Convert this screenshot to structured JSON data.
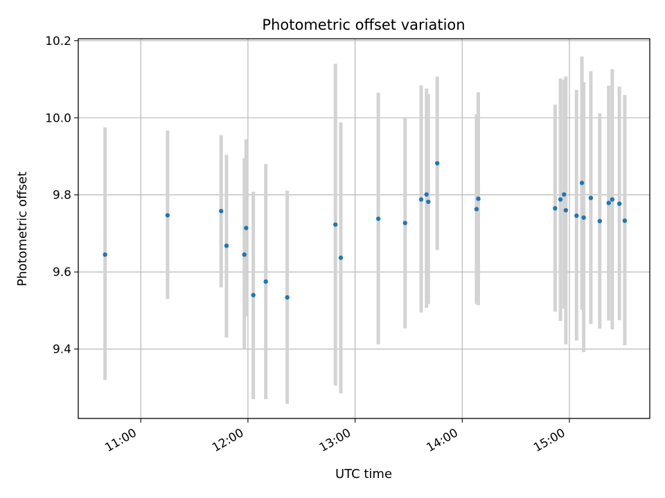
{
  "chart_data": {
    "type": "scatter",
    "title": "Photometric offset variation",
    "xlabel": "UTC time",
    "ylabel": "Photometric offset",
    "x_format": "time HH:MM",
    "xlim": [
      "10:25",
      "15:45"
    ],
    "ylim": [
      9.22,
      10.205
    ],
    "xticks": [
      "11:00",
      "12:00",
      "13:00",
      "14:00",
      "15:00"
    ],
    "yticks": [
      "9.4",
      "9.6",
      "9.8",
      "10.0",
      "10.2"
    ],
    "grid": true,
    "marker_color": "#1f77b4",
    "errorbar_color": "#d3d3d3",
    "points": [
      {
        "x": "10:40",
        "y": 9.645,
        "ylow": 9.32,
        "yhigh": 9.975
      },
      {
        "x": "11:15",
        "y": 9.747,
        "ylow": 9.53,
        "yhigh": 9.967
      },
      {
        "x": "11:45",
        "y": 9.758,
        "ylow": 9.56,
        "yhigh": 9.955
      },
      {
        "x": "11:48",
        "y": 9.668,
        "ylow": 9.43,
        "yhigh": 9.904
      },
      {
        "x": "11:58",
        "y": 9.645,
        "ylow": 9.4,
        "yhigh": 9.895
      },
      {
        "x": "11:59",
        "y": 9.714,
        "ylow": 9.485,
        "yhigh": 9.944
      },
      {
        "x": "12:03",
        "y": 9.54,
        "ylow": 9.27,
        "yhigh": 9.808
      },
      {
        "x": "12:10",
        "y": 9.575,
        "ylow": 9.27,
        "yhigh": 9.88
      },
      {
        "x": "12:22",
        "y": 9.534,
        "ylow": 9.258,
        "yhigh": 9.811
      },
      {
        "x": "12:49",
        "y": 9.723,
        "ylow": 9.305,
        "yhigh": 10.14
      },
      {
        "x": "12:52",
        "y": 9.637,
        "ylow": 9.285,
        "yhigh": 9.988
      },
      {
        "x": "13:13",
        "y": 9.738,
        "ylow": 9.412,
        "yhigh": 10.065
      },
      {
        "x": "13:28",
        "y": 9.727,
        "ylow": 9.454,
        "yhigh": 10.0
      },
      {
        "x": "13:37",
        "y": 9.788,
        "ylow": 9.495,
        "yhigh": 10.084
      },
      {
        "x": "13:40",
        "y": 9.801,
        "ylow": 9.507,
        "yhigh": 10.076
      },
      {
        "x": "13:41",
        "y": 9.782,
        "ylow": 9.517,
        "yhigh": 10.061
      },
      {
        "x": "13:46",
        "y": 9.882,
        "ylow": 9.657,
        "yhigh": 10.107
      },
      {
        "x": "14:08",
        "y": 9.763,
        "ylow": 9.517,
        "yhigh": 10.009
      },
      {
        "x": "14:09",
        "y": 9.79,
        "ylow": 9.514,
        "yhigh": 10.066
      },
      {
        "x": "14:52",
        "y": 9.765,
        "ylow": 9.497,
        "yhigh": 10.034
      },
      {
        "x": "14:55",
        "y": 9.788,
        "ylow": 9.473,
        "yhigh": 10.102
      },
      {
        "x": "14:57",
        "y": 9.801,
        "ylow": 9.505,
        "yhigh": 10.099
      },
      {
        "x": "14:58",
        "y": 9.76,
        "ylow": 9.412,
        "yhigh": 10.107
      },
      {
        "x": "15:04",
        "y": 9.746,
        "ylow": 9.422,
        "yhigh": 10.072
      },
      {
        "x": "15:07",
        "y": 9.831,
        "ylow": 9.502,
        "yhigh": 10.159
      },
      {
        "x": "15:08",
        "y": 9.741,
        "ylow": 9.392,
        "yhigh": 10.092
      },
      {
        "x": "15:12",
        "y": 9.792,
        "ylow": 9.465,
        "yhigh": 10.121
      },
      {
        "x": "15:17",
        "y": 9.732,
        "ylow": 9.453,
        "yhigh": 10.012
      },
      {
        "x": "15:22",
        "y": 9.779,
        "ylow": 9.474,
        "yhigh": 10.083
      },
      {
        "x": "15:24",
        "y": 9.788,
        "ylow": 9.451,
        "yhigh": 10.126
      },
      {
        "x": "15:28",
        "y": 9.777,
        "ylow": 9.475,
        "yhigh": 10.081
      },
      {
        "x": "15:31",
        "y": 9.733,
        "ylow": 9.41,
        "yhigh": 10.059
      }
    ]
  }
}
